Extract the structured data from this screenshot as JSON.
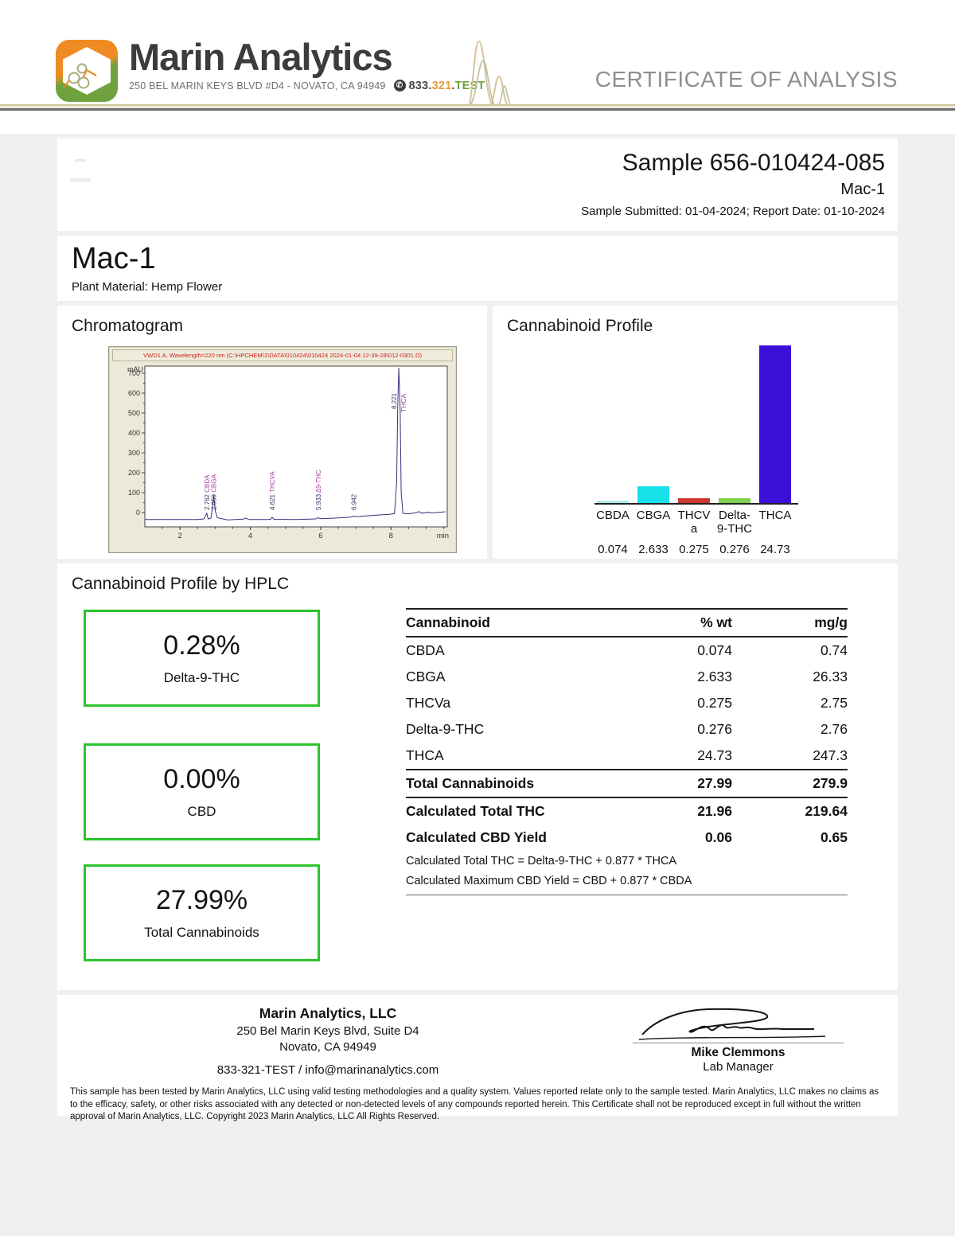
{
  "header": {
    "brand": "Marin Analytics",
    "address": "250 BEL MARIN KEYS BLVD #D4 - NOVATO, CA 94949",
    "phone_part1": "833.",
    "phone_part2": "321",
    "phone_part3": ".",
    "phone_part4": "TEST",
    "title": "CERTIFICATE OF ANALYSIS"
  },
  "sample": {
    "id_line": "Sample 656-010424-085",
    "name": "Mac-1",
    "dates_line": "Sample Submitted: 01-04-2024;  Report Date: 01-10-2024"
  },
  "product": {
    "name": "Mac-1",
    "material": "Plant Material: Hemp Flower"
  },
  "chromatogram": {
    "section_title": "Chromatogram",
    "instrument_line": "VWD1 A, Wavelength=220 nm (C:\\HPCHEM\\1\\DATA\\010424\\010424 2024-01-04 12-39-28\\012-0301.D)",
    "y_unit": "mAU",
    "y_ticks": [
      700,
      600,
      500,
      400,
      300,
      200,
      100,
      0
    ],
    "x_ticks": [
      2,
      4,
      6,
      8
    ],
    "x_unit": "min",
    "peaks": [
      {
        "rt": 2.762,
        "rt_label": "2.762",
        "name": "CBDA"
      },
      {
        "rt": 2.959,
        "rt_label": "2.959",
        "name": "CBGA"
      },
      {
        "rt": 4.621,
        "rt_label": "4.621",
        "name": "THCVA"
      },
      {
        "rt": 5.933,
        "rt_label": "5.933",
        "name": "Δ9-THC"
      },
      {
        "rt": 6.942,
        "rt_label": "6.942",
        "name": ""
      },
      {
        "rt": 8.221,
        "rt_label": "8.221",
        "name": "THCA"
      }
    ]
  },
  "profile": {
    "section_title": "Cannabinoid Profile"
  },
  "chart_data": {
    "type": "bar",
    "title": "Cannabinoid Profile",
    "categories": [
      "CBDA",
      "CBGA",
      "THCVa",
      "Delta-9-THC",
      "THCA"
    ],
    "cat_lines": [
      [
        "CBDA"
      ],
      [
        "CBGA"
      ],
      [
        "THCV",
        "a"
      ],
      [
        "Delta-",
        "9-THC"
      ],
      [
        "THCA"
      ]
    ],
    "values": [
      0.074,
      2.633,
      0.275,
      0.276,
      24.73
    ],
    "value_labels": [
      "0.074",
      "2.633",
      "0.275",
      "0.276",
      "24.73"
    ],
    "bar_colors": [
      "#aeeae6",
      "#17e1e8",
      "#cd3730",
      "#7cd14e",
      "#3a10d9"
    ],
    "ylim": [
      0,
      25
    ],
    "xlabel": "",
    "ylabel": "% wt",
    "legend": false
  },
  "hplc": {
    "section_title": "Cannabinoid Profile by HPLC",
    "boxes": [
      {
        "value": "0.28%",
        "label": "Delta-9-THC"
      },
      {
        "value": "0.00%",
        "label": "CBD"
      },
      {
        "value": "27.99%",
        "label": "Total Cannabinoids"
      }
    ],
    "table": {
      "headers": [
        "Cannabinoid",
        "% wt",
        "mg/g"
      ],
      "rows": [
        {
          "name": "CBDA",
          "pct": "0.074",
          "mg": "0.74"
        },
        {
          "name": "CBGA",
          "pct": "2.633",
          "mg": "26.33"
        },
        {
          "name": "THCVa",
          "pct": "0.275",
          "mg": "2.75"
        },
        {
          "name": "Delta-9-THC",
          "pct": "0.276",
          "mg": "2.76"
        },
        {
          "name": "THCA",
          "pct": "24.73",
          "mg": "247.3"
        }
      ],
      "total_row": {
        "name": "Total Cannabinoids",
        "pct": "27.99",
        "mg": "279.9"
      },
      "calc_rows": [
        {
          "name": "Calculated Total THC",
          "pct": "21.96",
          "mg": "219.64"
        },
        {
          "name": "Calculated CBD Yield",
          "pct": "0.06",
          "mg": "0.65"
        }
      ],
      "formulas": [
        "Calculated Total THC = Delta-9-THC + 0.877 * THCA",
        "Calculated Maximum CBD Yield = CBD + 0.877 * CBDA"
      ]
    }
  },
  "footer": {
    "lab_name": "Marin Analytics, LLC",
    "addr1": "250 Bel Marin Keys Blvd, Suite D4",
    "addr2": "Novato, CA 94949",
    "contact": "833-321-TEST / info@marinanalytics.com",
    "signer_name": "Mike Clemmons",
    "signer_title": "Lab Manager"
  },
  "disclaimer": "This sample has been tested by Marin Analytics, LLC using valid testing methodologies and a quality system.  Values reported relate only to the sample tested.  Marin Analytics, LLC makes no claims as to the efficacy, safety, or other risks associated with any detected or non-detected levels of any compounds reported herein.  This Certificate shall not be reproduced except in full without the written approval of Marin Analytics, LLC.      Copyright 2023 Marin Analytics, LLC All Rights Reserved."
}
